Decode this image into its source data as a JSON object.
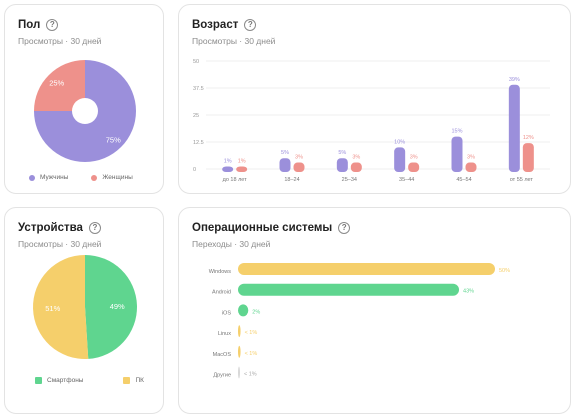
{
  "cards": {
    "gender": {
      "title": "Пол",
      "subtitle": "Просмотры · 30 дней",
      "legend": [
        {
          "label": "Мужчины",
          "color": "#9b8fdb"
        },
        {
          "label": "Женщины",
          "color": "#ee918b"
        }
      ]
    },
    "age": {
      "title": "Возраст",
      "subtitle": "Просмотры · 30 дней"
    },
    "devices": {
      "title": "Устройства",
      "subtitle": "Просмотры · 30 дней",
      "legend": [
        {
          "label": "Смартфоны",
          "color": "#5fd58f"
        },
        {
          "label": "ПК",
          "color": "#f5cf6b"
        }
      ]
    },
    "os": {
      "title": "Операционные системы",
      "subtitle": "Переходы · 30 дней"
    }
  },
  "chart_data": [
    {
      "type": "pie",
      "name": "gender",
      "labels": [
        "Мужчины",
        "Женщины"
      ],
      "values": [
        75,
        25
      ],
      "value_labels": [
        "75%",
        "25%"
      ],
      "colors": [
        "#9b8fdb",
        "#ee918b"
      ],
      "donut": true
    },
    {
      "type": "bar",
      "name": "age",
      "categories": [
        "до 18 лет",
        "18–24",
        "25–34",
        "35–44",
        "45–54",
        "от 55 лет"
      ],
      "series": [
        {
          "values": [
            1,
            5,
            5,
            10,
            15,
            39
          ],
          "labels": [
            "1%",
            "5%",
            "5%",
            "10%",
            "15%",
            "39%"
          ],
          "color": "#9b8fdb"
        },
        {
          "values": [
            1,
            3,
            3,
            3,
            3,
            12
          ],
          "labels": [
            "1%",
            "3%",
            "3%",
            "3%",
            "3%",
            "12%"
          ],
          "color": "#ee918b"
        }
      ],
      "yticks": [
        "0",
        "12.5",
        "25",
        "37.5",
        "50"
      ],
      "ylim": [
        0,
        50
      ],
      "grid": true
    },
    {
      "type": "pie",
      "name": "devices",
      "labels": [
        "Смартфоны",
        "ПК"
      ],
      "values": [
        49,
        51
      ],
      "value_labels": [
        "49%",
        "51%"
      ],
      "colors": [
        "#5fd58f",
        "#f5cf6b"
      ],
      "donut": false
    },
    {
      "type": "bar",
      "orientation": "horizontal",
      "name": "os",
      "categories": [
        "Windows",
        "Android",
        "iOS",
        "Linux",
        "MacOS",
        "Другие"
      ],
      "values": [
        50,
        43,
        2,
        0.5,
        0.5,
        0.3
      ],
      "value_labels": [
        "50%",
        "43%",
        "2%",
        "< 1%",
        "< 1%",
        "< 1%"
      ],
      "colors": [
        "#f5cf6b",
        "#5fd58f",
        "#5fd58f",
        "#f5cf6b",
        "#f5cf6b",
        "#d8d8d8"
      ],
      "xlim": [
        0,
        50
      ]
    }
  ]
}
